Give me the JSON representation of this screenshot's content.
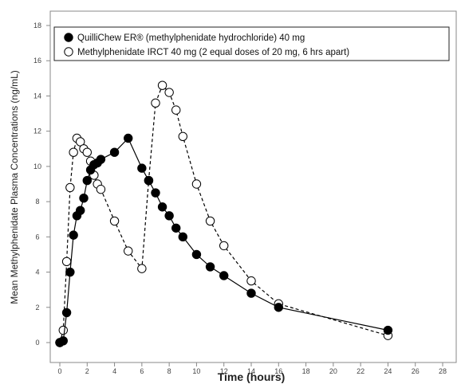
{
  "chart_data": {
    "type": "line",
    "title": "",
    "xlabel": "Time (hours)",
    "ylabel": "Mean Methylphenidate Plasma Concentrations (ng/mL)",
    "xlim": [
      0,
      28
    ],
    "ylim": [
      0,
      18
    ],
    "xticks": [
      0,
      2,
      4,
      6,
      8,
      10,
      12,
      14,
      16,
      18,
      20,
      22,
      24,
      26,
      28
    ],
    "yticks": [
      0,
      2,
      4,
      6,
      8,
      10,
      12,
      14,
      16,
      18
    ],
    "grid": false,
    "legend_position": "top-left",
    "series": [
      {
        "name": "QuilliChew ER® (methylphenidate hydrochloride) 40 mg",
        "marker": "filled-circle",
        "line": "solid",
        "color": "#000000",
        "x": [
          0,
          0.25,
          0.5,
          0.75,
          1,
          1.25,
          1.5,
          1.75,
          2,
          2.25,
          2.5,
          2.75,
          3,
          4,
          5,
          6,
          6.5,
          7,
          7.5,
          8,
          8.5,
          9,
          10,
          11,
          12,
          14,
          16,
          24
        ],
        "y": [
          0,
          0.1,
          1.7,
          4.0,
          6.1,
          7.2,
          7.5,
          8.2,
          9.2,
          9.8,
          10.1,
          10.2,
          10.4,
          10.8,
          11.6,
          9.9,
          9.2,
          8.5,
          7.7,
          7.2,
          6.5,
          6.0,
          5.0,
          4.3,
          3.8,
          2.8,
          2.0,
          0.7
        ]
      },
      {
        "name": "Methylphenidate IRCT 40 mg (2 equal doses of 20 mg, 6 hrs apart)",
        "marker": "open-circle",
        "line": "dashed",
        "color": "#000000",
        "x": [
          0,
          0.25,
          0.5,
          0.75,
          1,
          1.25,
          1.5,
          1.75,
          2,
          2.25,
          2.5,
          2.75,
          3,
          4,
          5,
          6,
          6.5,
          7,
          7.5,
          8,
          8.5,
          9,
          10,
          11,
          12,
          14,
          16,
          24
        ],
        "y": [
          0,
          0.7,
          4.6,
          8.8,
          10.8,
          11.6,
          11.4,
          11.0,
          10.8,
          10.3,
          9.5,
          9.0,
          8.7,
          6.9,
          5.2,
          4.2,
          9.2,
          13.6,
          14.6,
          14.2,
          13.2,
          11.7,
          9.0,
          6.9,
          5.5,
          3.5,
          2.2,
          0.4
        ]
      }
    ]
  }
}
